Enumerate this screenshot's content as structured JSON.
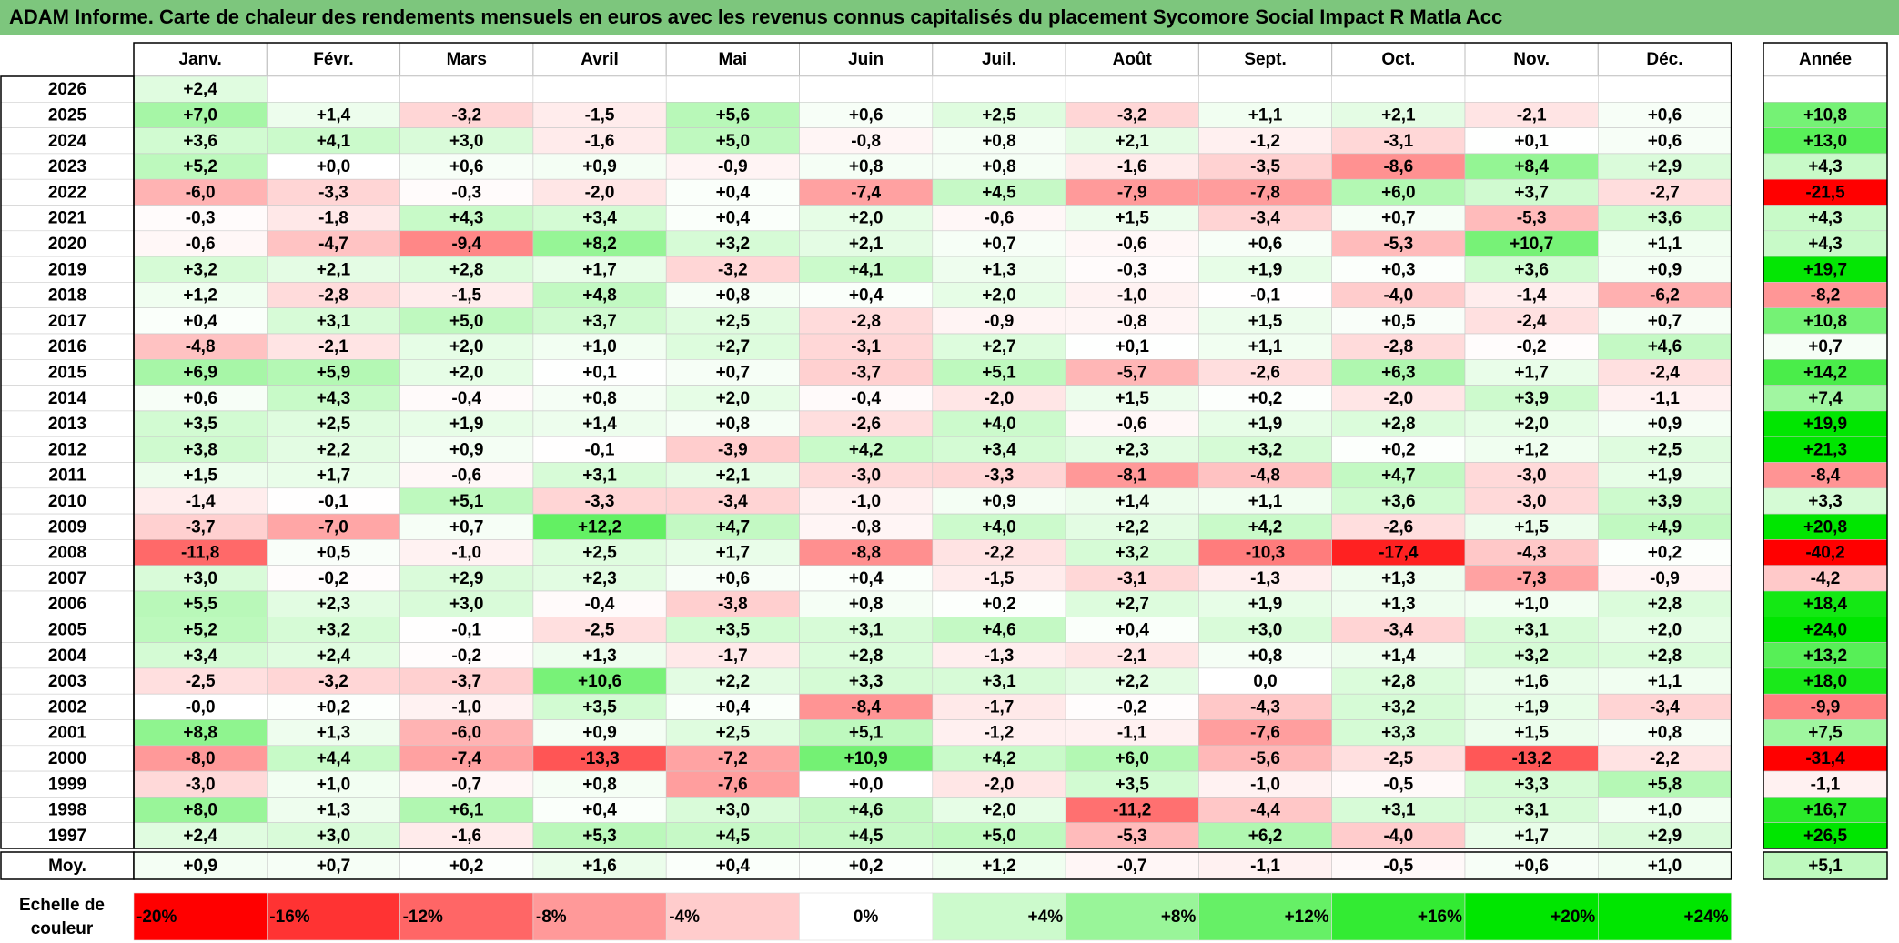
{
  "title": "ADAM Informe. Carte de chaleur des rendements mensuels en euros avec les revenus connus capitalisés du placement Sycomore Social Impact R Matla Acc",
  "chart_data": {
    "type": "heatmap",
    "months": [
      "Janv.",
      "Févr.",
      "Mars",
      "Avril",
      "Mai",
      "Juin",
      "Juil.",
      "Août",
      "Sept.",
      "Oct.",
      "Nov.",
      "Déc."
    ],
    "year_label": "Année",
    "rows": [
      {
        "year": "2026",
        "values": [
          "+2,4",
          "",
          "",
          "",
          "",
          "",
          "",
          "",
          "",
          "",
          "",
          ""
        ],
        "annual": ""
      },
      {
        "year": "2025",
        "values": [
          "+7,0",
          "+1,4",
          "-3,2",
          "-1,5",
          "+5,6",
          "+0,6",
          "+2,5",
          "-3,2",
          "+1,1",
          "+2,1",
          "-2,1",
          "+0,6"
        ],
        "annual": "+10,8"
      },
      {
        "year": "2024",
        "values": [
          "+3,6",
          "+4,1",
          "+3,0",
          "-1,6",
          "+5,0",
          "-0,8",
          "+0,8",
          "+2,1",
          "-1,2",
          "-3,1",
          "+0,1",
          "+0,6"
        ],
        "annual": "+13,0"
      },
      {
        "year": "2023",
        "values": [
          "+5,2",
          "+0,0",
          "+0,6",
          "+0,9",
          "-0,9",
          "+0,8",
          "+0,8",
          "-1,6",
          "-3,5",
          "-8,6",
          "+8,4",
          "+2,9"
        ],
        "annual": "+4,3"
      },
      {
        "year": "2022",
        "values": [
          "-6,0",
          "-3,3",
          "-0,3",
          "-2,0",
          "+0,4",
          "-7,4",
          "+4,5",
          "-7,9",
          "-7,8",
          "+6,0",
          "+3,7",
          "-2,7"
        ],
        "annual": "-21,5"
      },
      {
        "year": "2021",
        "values": [
          "-0,3",
          "-1,8",
          "+4,3",
          "+3,4",
          "+0,4",
          "+2,0",
          "-0,6",
          "+1,5",
          "-3,4",
          "+0,7",
          "-5,3",
          "+3,6"
        ],
        "annual": "+4,3"
      },
      {
        "year": "2020",
        "values": [
          "-0,6",
          "-4,7",
          "-9,4",
          "+8,2",
          "+3,2",
          "+2,1",
          "+0,7",
          "-0,6",
          "+0,6",
          "-5,3",
          "+10,7",
          "+1,1"
        ],
        "annual": "+4,3"
      },
      {
        "year": "2019",
        "values": [
          "+3,2",
          "+2,1",
          "+2,8",
          "+1,7",
          "-3,2",
          "+4,1",
          "+1,3",
          "-0,3",
          "+1,9",
          "+0,3",
          "+3,6",
          "+0,9"
        ],
        "annual": "+19,7"
      },
      {
        "year": "2018",
        "values": [
          "+1,2",
          "-2,8",
          "-1,5",
          "+4,8",
          "+0,8",
          "+0,4",
          "+2,0",
          "-1,0",
          "-0,1",
          "-4,0",
          "-1,4",
          "-6,2"
        ],
        "annual": "-8,2"
      },
      {
        "year": "2017",
        "values": [
          "+0,4",
          "+3,1",
          "+5,0",
          "+3,7",
          "+2,5",
          "-2,8",
          "-0,9",
          "-0,8",
          "+1,5",
          "+0,5",
          "-2,4",
          "+0,7"
        ],
        "annual": "+10,8"
      },
      {
        "year": "2016",
        "values": [
          "-4,8",
          "-2,1",
          "+2,0",
          "+1,0",
          "+2,7",
          "-3,1",
          "+2,7",
          "+0,1",
          "+1,1",
          "-2,8",
          "-0,2",
          "+4,6"
        ],
        "annual": "+0,7"
      },
      {
        "year": "2015",
        "values": [
          "+6,9",
          "+5,9",
          "+2,0",
          "+0,1",
          "+0,7",
          "-3,7",
          "+5,1",
          "-5,7",
          "-2,6",
          "+6,3",
          "+1,7",
          "-2,4"
        ],
        "annual": "+14,2"
      },
      {
        "year": "2014",
        "values": [
          "+0,6",
          "+4,3",
          "-0,4",
          "+0,8",
          "+2,0",
          "-0,4",
          "-2,0",
          "+1,5",
          "+0,2",
          "-2,0",
          "+3,9",
          "-1,1"
        ],
        "annual": "+7,4"
      },
      {
        "year": "2013",
        "values": [
          "+3,5",
          "+2,5",
          "+1,9",
          "+1,4",
          "+0,8",
          "-2,6",
          "+4,0",
          "-0,6",
          "+1,9",
          "+2,8",
          "+2,0",
          "+0,9"
        ],
        "annual": "+19,9"
      },
      {
        "year": "2012",
        "values": [
          "+3,8",
          "+2,2",
          "+0,9",
          "-0,1",
          "-3,9",
          "+4,2",
          "+3,4",
          "+2,3",
          "+3,2",
          "+0,2",
          "+1,2",
          "+2,5"
        ],
        "annual": "+21,3"
      },
      {
        "year": "2011",
        "values": [
          "+1,5",
          "+1,7",
          "-0,6",
          "+3,1",
          "+2,1",
          "-3,0",
          "-3,3",
          "-8,1",
          "-4,8",
          "+4,7",
          "-3,0",
          "+1,9"
        ],
        "annual": "-8,4"
      },
      {
        "year": "2010",
        "values": [
          "-1,4",
          "-0,1",
          "+5,1",
          "-3,3",
          "-3,4",
          "-1,0",
          "+0,9",
          "+1,4",
          "+1,1",
          "+3,6",
          "-3,0",
          "+3,9"
        ],
        "annual": "+3,3"
      },
      {
        "year": "2009",
        "values": [
          "-3,7",
          "-7,0",
          "+0,7",
          "+12,2",
          "+4,7",
          "-0,8",
          "+4,0",
          "+2,2",
          "+4,2",
          "-2,6",
          "+1,5",
          "+4,9"
        ],
        "annual": "+20,8"
      },
      {
        "year": "2008",
        "values": [
          "-11,8",
          "+0,5",
          "-1,0",
          "+2,5",
          "+1,7",
          "-8,8",
          "-2,2",
          "+3,2",
          "-10,3",
          "-17,4",
          "-4,3",
          "+0,2"
        ],
        "annual": "-40,2"
      },
      {
        "year": "2007",
        "values": [
          "+3,0",
          "-0,2",
          "+2,9",
          "+2,3",
          "+0,6",
          "+0,4",
          "-1,5",
          "-3,1",
          "-1,3",
          "+1,3",
          "-7,3",
          "-0,9"
        ],
        "annual": "-4,2"
      },
      {
        "year": "2006",
        "values": [
          "+5,5",
          "+2,3",
          "+3,0",
          "-0,4",
          "-3,8",
          "+0,8",
          "+0,2",
          "+2,7",
          "+1,9",
          "+1,3",
          "+1,0",
          "+2,8"
        ],
        "annual": "+18,4"
      },
      {
        "year": "2005",
        "values": [
          "+5,2",
          "+3,2",
          "-0,1",
          "-2,5",
          "+3,5",
          "+3,1",
          "+4,6",
          "+0,4",
          "+3,0",
          "-3,4",
          "+3,1",
          "+2,0"
        ],
        "annual": "+24,0"
      },
      {
        "year": "2004",
        "values": [
          "+3,4",
          "+2,4",
          "-0,2",
          "+1,3",
          "-1,7",
          "+2,8",
          "-1,3",
          "-2,1",
          "+0,8",
          "+1,4",
          "+3,2",
          "+2,8"
        ],
        "annual": "+13,2"
      },
      {
        "year": "2003",
        "values": [
          "-2,5",
          "-3,2",
          "-3,7",
          "+10,6",
          "+2,2",
          "+3,3",
          "+3,1",
          "+2,2",
          "0,0",
          "+2,8",
          "+1,6",
          "+1,1"
        ],
        "annual": "+18,0"
      },
      {
        "year": "2002",
        "values": [
          "-0,0",
          "+0,2",
          "-1,0",
          "+3,5",
          "+0,4",
          "-8,4",
          "-1,7",
          "-0,2",
          "-4,3",
          "+3,2",
          "+1,9",
          "-3,4"
        ],
        "annual": "-9,9"
      },
      {
        "year": "2001",
        "values": [
          "+8,8",
          "+1,3",
          "-6,0",
          "+0,9",
          "+2,5",
          "+5,1",
          "-1,2",
          "-1,1",
          "-7,6",
          "+3,3",
          "+1,5",
          "+0,8"
        ],
        "annual": "+7,5"
      },
      {
        "year": "2000",
        "values": [
          "-8,0",
          "+4,4",
          "-7,4",
          "-13,3",
          "-7,2",
          "+10,9",
          "+4,2",
          "+6,0",
          "-5,6",
          "-2,5",
          "-13,2",
          "-2,2"
        ],
        "annual": "-31,4"
      },
      {
        "year": "1999",
        "values": [
          "-3,0",
          "+1,0",
          "-0,7",
          "+0,8",
          "-7,6",
          "+0,0",
          "-2,0",
          "+3,5",
          "-1,0",
          "-0,5",
          "+3,3",
          "+5,8"
        ],
        "annual": "-1,1"
      },
      {
        "year": "1998",
        "values": [
          "+8,0",
          "+1,3",
          "+6,1",
          "+0,4",
          "+3,0",
          "+4,6",
          "+2,0",
          "-11,2",
          "-4,4",
          "+3,1",
          "+3,1",
          "+1,0"
        ],
        "annual": "+16,7"
      },
      {
        "year": "1997",
        "values": [
          "+2,4",
          "+3,0",
          "-1,6",
          "+5,3",
          "+4,5",
          "+4,5",
          "+5,0",
          "-5,3",
          "+6,2",
          "-4,0",
          "+1,7",
          "+2,9"
        ],
        "annual": "+26,5"
      }
    ],
    "average": {
      "label": "Moy.",
      "values": [
        "+0,9",
        "+0,7",
        "+0,2",
        "+1,6",
        "+0,4",
        "+0,2",
        "+1,2",
        "-0,7",
        "-1,1",
        "-0,5",
        "+0,6",
        "+1,0"
      ],
      "annual": "+5,1"
    },
    "scale": {
      "label_line1": "Echelle de",
      "label_line2": "couleur",
      "stops": [
        "-20%",
        "-16%",
        "-12%",
        "-8%",
        "-4%",
        "0%",
        "+4%",
        "+8%",
        "+12%",
        "+16%",
        "+20%",
        "+24%"
      ]
    },
    "colors": {
      "negative_max": "#ff0000",
      "neutral": "#ffffff",
      "positive_max": "#00e600",
      "title_bg": "#7dc67d"
    }
  }
}
